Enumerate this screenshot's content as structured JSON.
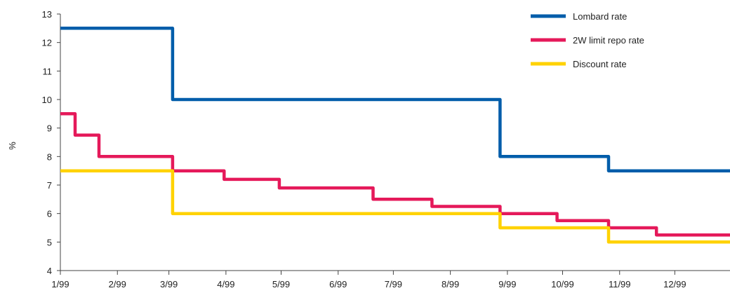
{
  "chart_data": {
    "type": "line",
    "title": "",
    "xlabel": "",
    "ylabel": "%",
    "ylim": [
      4,
      13
    ],
    "yticks": [
      4,
      5,
      6,
      7,
      8,
      9,
      10,
      11,
      12,
      13
    ],
    "xlim": [
      "1999-01-01",
      "1999-12-31"
    ],
    "xticks": [
      {
        "label": "1/99",
        "date": "1999-01-01"
      },
      {
        "label": "2/99",
        "date": "1999-02-01"
      },
      {
        "label": "3/99",
        "date": "1999-03-01"
      },
      {
        "label": "4/99",
        "date": "1999-04-01"
      },
      {
        "label": "5/99",
        "date": "1999-05-01"
      },
      {
        "label": "6/99",
        "date": "1999-06-01"
      },
      {
        "label": "7/99",
        "date": "1999-07-01"
      },
      {
        "label": "8/99",
        "date": "1999-08-01"
      },
      {
        "label": "9/99",
        "date": "1999-09-01"
      },
      {
        "label": "10/99",
        "date": "1999-10-01"
      },
      {
        "label": "11/99",
        "date": "1999-11-01"
      },
      {
        "label": "12/99",
        "date": "1999-12-01"
      }
    ],
    "grid": false,
    "legend_position": "top-right",
    "step": true,
    "series": [
      {
        "name": "Lombard rate",
        "color": "#005DAA",
        "points": [
          [
            "1999-01-01",
            12.5
          ],
          [
            "1999-03-03",
            10.0
          ],
          [
            "1999-08-28",
            8.0
          ],
          [
            "1999-10-26",
            7.5
          ],
          [
            "1999-12-31",
            7.5
          ]
        ]
      },
      {
        "name": "2W limit repo rate",
        "color": "#E5195A",
        "points": [
          [
            "1999-01-01",
            9.5
          ],
          [
            "1999-01-09",
            8.75
          ],
          [
            "1999-01-22",
            8.0
          ],
          [
            "1999-03-03",
            7.5
          ],
          [
            "1999-03-31",
            7.2
          ],
          [
            "1999-04-30",
            6.9
          ],
          [
            "1999-06-20",
            6.5
          ],
          [
            "1999-07-22",
            6.25
          ],
          [
            "1999-08-28",
            6.0
          ],
          [
            "1999-09-28",
            5.75
          ],
          [
            "1999-10-26",
            5.5
          ],
          [
            "1999-11-21",
            5.25
          ],
          [
            "1999-12-31",
            5.25
          ]
        ]
      },
      {
        "name": "Discount rate",
        "color": "#FFD200",
        "points": [
          [
            "1999-01-01",
            7.5
          ],
          [
            "1999-03-03",
            6.0
          ],
          [
            "1999-08-28",
            5.5
          ],
          [
            "1999-10-26",
            5.0
          ],
          [
            "1999-12-31",
            5.0
          ]
        ]
      }
    ]
  }
}
